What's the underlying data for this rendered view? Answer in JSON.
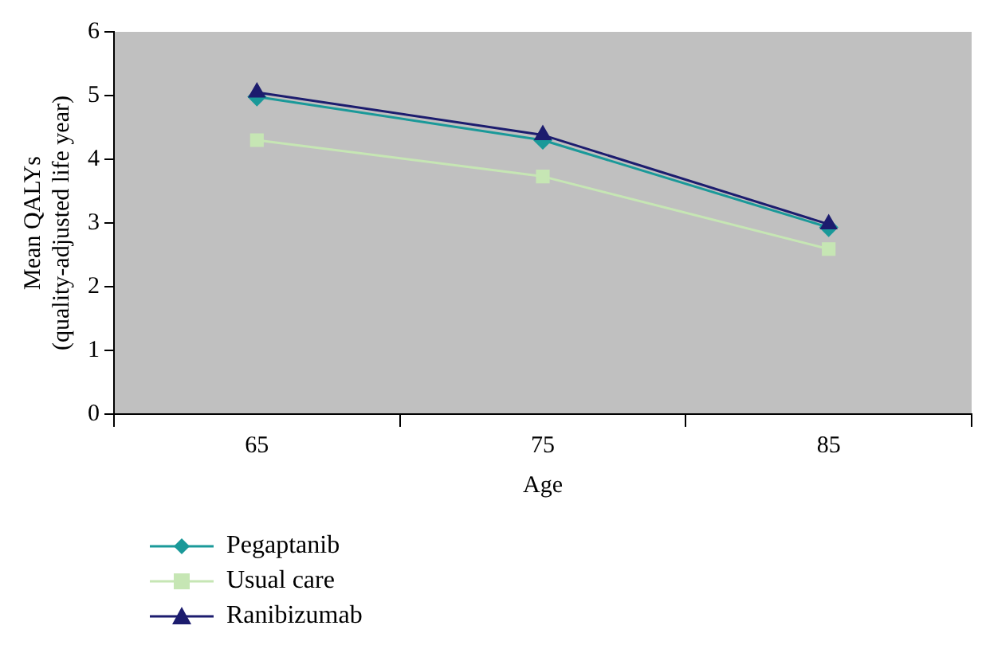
{
  "chart_data": {
    "type": "line",
    "xlabel": "Age",
    "ylabel": "Mean QALYs\n(quality-adjusted life year)",
    "categories": [
      "65",
      "75",
      "85"
    ],
    "series": [
      {
        "name": "Pegaptanib",
        "color": "#1a9999",
        "marker": "diamond",
        "values": [
          4.98,
          4.3,
          2.93
        ]
      },
      {
        "name": "Usual care",
        "color": "#c6e6b4",
        "marker": "square",
        "values": [
          4.3,
          3.73,
          2.59
        ]
      },
      {
        "name": "Ranibizumab",
        "color": "#1c1c6e",
        "marker": "triangle",
        "values": [
          5.05,
          4.38,
          2.98
        ]
      }
    ],
    "ylim": [
      0,
      6
    ],
    "yticks": [
      0,
      1,
      2,
      3,
      4,
      5,
      6
    ],
    "grid": false,
    "legend": "bottom left"
  }
}
